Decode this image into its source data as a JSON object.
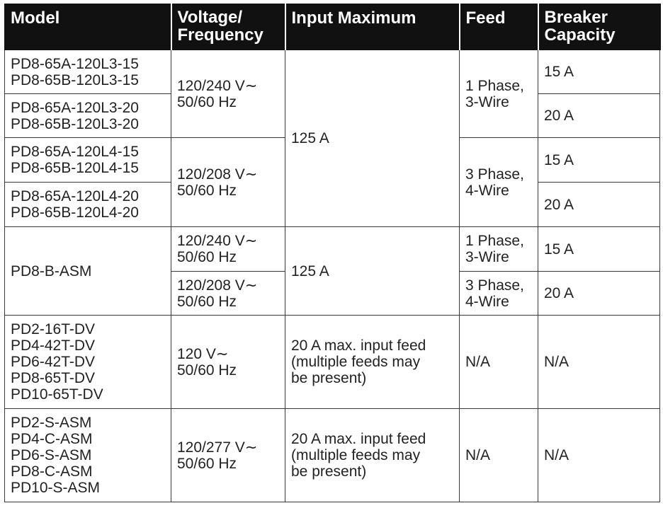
{
  "headers": {
    "model": "Model",
    "voltage": [
      "Voltage/",
      "Frequency"
    ],
    "input": "Input Maximum",
    "feed": "Feed",
    "breaker": [
      "Breaker",
      "Capacity"
    ]
  },
  "rows": [
    {
      "model": [
        "PD8-65A-120L3-15",
        "PD8-65B-120L3-15"
      ],
      "breaker": "15 A"
    },
    {
      "model": [
        "PD8-65A-120L3-20",
        "PD8-65B-120L3-20"
      ],
      "breaker": "20 A"
    },
    {
      "model": [
        "PD8-65A-120L4-15",
        "PD8-65B-120L4-15"
      ],
      "breaker": "15 A"
    },
    {
      "model": [
        "PD8-65A-120L4-20",
        "PD8-65B-120L4-20"
      ],
      "breaker": "20 A"
    }
  ],
  "group1": {
    "voltage_a": [
      "120/240 V∼",
      "50/60 Hz"
    ],
    "voltage_b": [
      "120/208 V∼",
      "50/60 Hz"
    ],
    "input": "125 A",
    "feed_a": [
      "1 Phase,",
      "3-Wire"
    ],
    "feed_b": [
      "3 Phase,",
      "4-Wire"
    ]
  },
  "group2": {
    "model": "PD8-B-ASM",
    "input": "125 A",
    "rows": [
      {
        "voltage": [
          "120/240 V∼",
          "50/60 Hz"
        ],
        "feed": [
          "1 Phase,",
          "3-Wire"
        ],
        "breaker": "15 A"
      },
      {
        "voltage": [
          "120/208 V∼",
          "50/60 Hz"
        ],
        "feed": [
          "3 Phase,",
          "4-Wire"
        ],
        "breaker": "20 A"
      }
    ]
  },
  "group3": {
    "model": [
      "PD2-16T-DV",
      "PD4-42T-DV",
      "PD6-42T-DV",
      "PD8-65T-DV",
      "PD10-65T-DV"
    ],
    "voltage": [
      "120 V∼",
      "50/60 Hz"
    ],
    "input": [
      "20 A max. input feed",
      "(multiple feeds may",
      "be present)"
    ],
    "feed": "N/A",
    "breaker": "N/A"
  },
  "group4": {
    "model": [
      "PD2-S-ASM",
      "PD4-C-ASM",
      "PD6-S-ASM",
      "PD8-C-ASM",
      "PD10-S-ASM"
    ],
    "voltage": [
      "120/277 V∼",
      "50/60 Hz"
    ],
    "input": [
      "20 A max. input feed",
      "(multiple feeds may",
      "be present)"
    ],
    "feed": "N/A",
    "breaker": "N/A"
  }
}
